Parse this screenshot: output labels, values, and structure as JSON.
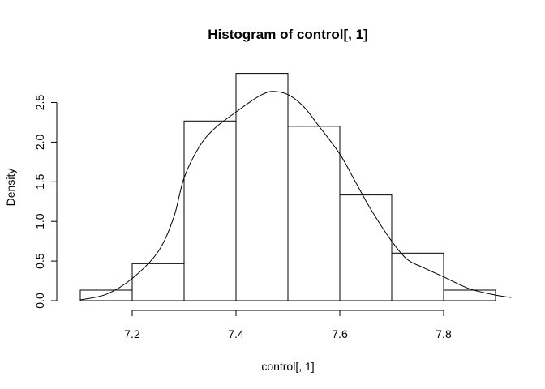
{
  "chart_data": {
    "type": "bar",
    "subtype": "histogram_with_density_curve",
    "title": "Histogram of control[, 1]",
    "xlabel": "control[, 1]",
    "ylabel": "Density",
    "xlim": [
      7.05,
      7.95
    ],
    "ylim": [
      0,
      2.9
    ],
    "grid": false,
    "x_ticks": [
      7.2,
      7.4,
      7.6,
      7.8
    ],
    "x_tick_labels": [
      "7.2",
      "7.4",
      "7.6",
      "7.8"
    ],
    "y_ticks": [
      0.0,
      0.5,
      1.0,
      1.5,
      2.0,
      2.5
    ],
    "y_tick_labels": [
      "0.0",
      "0.5",
      "1.0",
      "1.5",
      "2.0",
      "2.5"
    ],
    "bins": [
      {
        "x0": 7.1,
        "x1": 7.2,
        "density": 0.133
      },
      {
        "x0": 7.2,
        "x1": 7.3,
        "density": 0.467
      },
      {
        "x0": 7.3,
        "x1": 7.4,
        "density": 2.267
      },
      {
        "x0": 7.4,
        "x1": 7.5,
        "density": 2.867
      },
      {
        "x0": 7.5,
        "x1": 7.6,
        "density": 2.2
      },
      {
        "x0": 7.6,
        "x1": 7.7,
        "density": 1.333
      },
      {
        "x0": 7.7,
        "x1": 7.8,
        "density": 0.6
      },
      {
        "x0": 7.8,
        "x1": 7.9,
        "density": 0.133
      }
    ],
    "density_curve": {
      "x": [
        7.1,
        7.15,
        7.2,
        7.25,
        7.28,
        7.3,
        7.33,
        7.36,
        7.4,
        7.43,
        7.45,
        7.47,
        7.5,
        7.53,
        7.56,
        7.6,
        7.63,
        7.66,
        7.7,
        7.73,
        7.76,
        7.8,
        7.85,
        7.9,
        7.93
      ],
      "y": [
        0.01,
        0.08,
        0.28,
        0.62,
        1.05,
        1.55,
        1.95,
        2.18,
        2.38,
        2.52,
        2.6,
        2.64,
        2.6,
        2.45,
        2.2,
        1.85,
        1.5,
        1.15,
        0.75,
        0.52,
        0.42,
        0.3,
        0.15,
        0.07,
        0.04
      ]
    },
    "colors": {
      "bar_fill": "#ffffff",
      "stroke": "#000000"
    }
  }
}
